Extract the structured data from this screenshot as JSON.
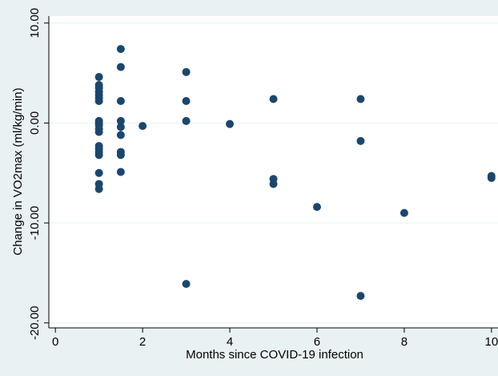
{
  "chart_data": {
    "type": "scatter",
    "title": "",
    "xlabel": "Months since COVID-19 infection",
    "ylabel": "Change in VO2max (ml/kg/min)",
    "xlim": [
      -0.15,
      10.15
    ],
    "ylim": [
      -20.5,
      10.7
    ],
    "x_ticks": [
      0,
      2,
      4,
      6,
      8,
      10
    ],
    "x_tick_labels": [
      "0",
      "2",
      "4",
      "6",
      "8",
      "10"
    ],
    "y_ticks": [
      10,
      0,
      -10,
      -20
    ],
    "y_tick_labels": [
      "10.00",
      "0.00",
      "-10.00",
      "-20.00"
    ],
    "grid": "horizontal",
    "legend": "none",
    "colors": {
      "outer_background": "#eaf1f3",
      "plot_background": "#ffffff",
      "marker": "#1a476f",
      "grid": "#eaf1f3",
      "axis": "#000000"
    },
    "points": [
      {
        "x": 1,
        "y": 4.6
      },
      {
        "x": 1,
        "y": 3.8
      },
      {
        "x": 1,
        "y": 3.5
      },
      {
        "x": 1,
        "y": 3.1
      },
      {
        "x": 1,
        "y": 2.8
      },
      {
        "x": 1,
        "y": 2.5
      },
      {
        "x": 1,
        "y": 2.2
      },
      {
        "x": 1,
        "y": 0.2
      },
      {
        "x": 1,
        "y": 0.0
      },
      {
        "x": 1,
        "y": -0.2
      },
      {
        "x": 1,
        "y": -0.6
      },
      {
        "x": 1,
        "y": -0.9
      },
      {
        "x": 1,
        "y": -2.3
      },
      {
        "x": 1,
        "y": -2.6
      },
      {
        "x": 1,
        "y": -2.9
      },
      {
        "x": 1,
        "y": -3.2
      },
      {
        "x": 1,
        "y": -5.0
      },
      {
        "x": 1,
        "y": -6.1
      },
      {
        "x": 1,
        "y": -6.6
      },
      {
        "x": 1.5,
        "y": 7.4
      },
      {
        "x": 1.5,
        "y": 5.6
      },
      {
        "x": 1.5,
        "y": 2.2
      },
      {
        "x": 1.5,
        "y": 0.2
      },
      {
        "x": 1.5,
        "y": -0.4
      },
      {
        "x": 1.5,
        "y": -1.2
      },
      {
        "x": 1.5,
        "y": -2.9
      },
      {
        "x": 1.5,
        "y": -3.2
      },
      {
        "x": 1.5,
        "y": -4.9
      },
      {
        "x": 2,
        "y": -0.3
      },
      {
        "x": 3,
        "y": 5.1
      },
      {
        "x": 3,
        "y": 2.2
      },
      {
        "x": 3,
        "y": 0.2
      },
      {
        "x": 3,
        "y": -16.1
      },
      {
        "x": 4,
        "y": -0.1
      },
      {
        "x": 5,
        "y": 2.4
      },
      {
        "x": 5,
        "y": -5.6
      },
      {
        "x": 5,
        "y": -6.1
      },
      {
        "x": 6,
        "y": -8.4
      },
      {
        "x": 7,
        "y": 2.4
      },
      {
        "x": 7,
        "y": -1.8
      },
      {
        "x": 7,
        "y": -17.3
      },
      {
        "x": 8,
        "y": -9.0
      },
      {
        "x": 10,
        "y": -5.3
      },
      {
        "x": 10,
        "y": -5.5
      }
    ]
  }
}
